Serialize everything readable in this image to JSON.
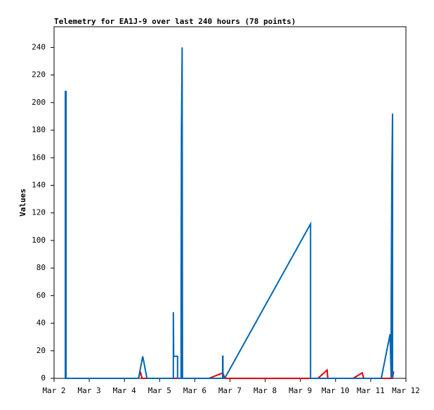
{
  "chart_data": {
    "type": "line",
    "title": "Telemetry for EA1J-9 over last 240 hours (78 points)",
    "y_label": "Values",
    "xlim": [
      2,
      12
    ],
    "xticks": [
      {
        "value": 2,
        "label": "Mar 2"
      },
      {
        "value": 3,
        "label": "Mar 3"
      },
      {
        "value": 4,
        "label": "Mar 4"
      },
      {
        "value": 5,
        "label": "Mar 5"
      },
      {
        "value": 6,
        "label": "Mar 6"
      },
      {
        "value": 7,
        "label": "Mar 7"
      },
      {
        "value": 8,
        "label": "Mar 8"
      },
      {
        "value": 9,
        "label": "Mar 9"
      },
      {
        "value": 10,
        "label": "Mar 10"
      },
      {
        "value": 11,
        "label": "Mar 11"
      },
      {
        "value": 12,
        "label": "Mar 12"
      }
    ],
    "ylim": [
      0,
      255
    ],
    "yticks": [
      0,
      20,
      40,
      60,
      80,
      100,
      120,
      140,
      160,
      180,
      200,
      220,
      240
    ],
    "grid": false,
    "series": [
      {
        "color": "#0066b3",
        "x": [
          2.32,
          2.32,
          2.34,
          2.34,
          4.4,
          4.52,
          4.64,
          5.39,
          5.39,
          5.4,
          5.51,
          5.51,
          5.61,
          5.61,
          5.62,
          5.64,
          5.65,
          6.79,
          6.79,
          6.8,
          6.8,
          6.85,
          9.29,
          9.29,
          11.3,
          11.55,
          11.58,
          11.58,
          11.6,
          11.62,
          11.62
        ],
        "values": [
          0,
          208,
          208,
          0,
          0,
          16,
          0,
          0,
          48,
          16,
          16,
          0,
          0,
          60,
          180,
          240,
          0,
          0,
          16,
          16,
          0,
          0,
          112,
          0,
          0,
          32,
          0,
          48,
          145,
          192,
          0
        ]
      },
      {
        "color": "#e00000",
        "x": [
          2.32,
          2.33,
          4.4,
          4.45,
          4.5,
          6.4,
          6.8,
          6.85,
          9.5,
          9.76,
          9.78,
          10.5,
          10.76,
          10.8,
          11.62,
          11.65
        ],
        "values": [
          9,
          0,
          0,
          5,
          0,
          0,
          4,
          0,
          0,
          6,
          0,
          0,
          4,
          0,
          0,
          5
        ]
      }
    ]
  }
}
